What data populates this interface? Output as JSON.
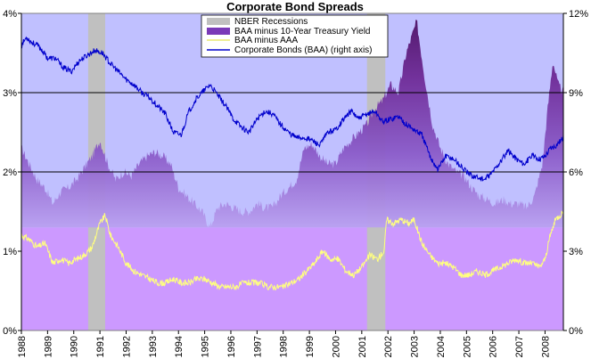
{
  "chart_data": {
    "type": "area",
    "title": "Corporate Bond Spreads",
    "xlabel": "",
    "ylabel": "",
    "x_ticks": [
      "1988",
      "1989",
      "1990",
      "1991",
      "1992",
      "1993",
      "1994",
      "1995",
      "1996",
      "1997",
      "1998",
      "1999",
      "2000",
      "2001",
      "2002",
      "2003",
      "2004",
      "2005",
      "2006",
      "2007",
      "2008"
    ],
    "xlim": [
      1988,
      2008.7
    ],
    "left_axis": {
      "ticks": [
        "0%",
        "1%",
        "2%",
        "3%",
        "4%"
      ],
      "ylim": [
        0,
        4
      ]
    },
    "right_axis": {
      "ticks": [
        "0%",
        "3%",
        "6%",
        "9%",
        "12%"
      ],
      "ylim": [
        0,
        12
      ]
    },
    "grid": "horizontal at 2% and 3%",
    "legend_position": "top-center",
    "colors": {
      "plot_bg": "#c0c0ff",
      "recession": "#c0c0c0",
      "spread_10y": "#8050c0",
      "spread_10y_dark": "#601a80",
      "baa_aaa": "#ffff80",
      "baa": "#0000cc",
      "lower_band": "#cc99ff"
    },
    "series": [
      {
        "name": "NBER Recessions",
        "kind": "band",
        "ranges": [
          [
            1990.55,
            1991.2
          ],
          [
            2001.2,
            2001.9
          ]
        ]
      },
      {
        "name": "BAA minus 10-Year Treasury Yield",
        "axis": "left",
        "x": [
          1988,
          1988.3,
          1988.6,
          1988.9,
          1989.2,
          1989.5,
          1989.8,
          1990.1,
          1990.4,
          1990.7,
          1991.0,
          1991.3,
          1991.6,
          1991.9,
          1992.2,
          1992.5,
          1992.8,
          1993.1,
          1993.4,
          1993.7,
          1994.0,
          1994.3,
          1994.6,
          1994.9,
          1995.2,
          1995.5,
          1995.8,
          1996.1,
          1996.4,
          1996.7,
          1997.0,
          1997.3,
          1997.6,
          1997.9,
          1998.2,
          1998.5,
          1998.8,
          1999.1,
          1999.4,
          1999.7,
          2000.0,
          2000.3,
          2000.6,
          2000.9,
          2001.2,
          2001.5,
          2001.8,
          2002.1,
          2002.4,
          2002.7,
          2002.9,
          2003.1,
          2003.4,
          2003.7,
          2004.0,
          2004.3,
          2004.6,
          2004.9,
          2005.2,
          2005.5,
          2005.8,
          2006.1,
          2006.4,
          2006.7,
          2007.0,
          2007.3,
          2007.6,
          2007.9,
          2008.1,
          2008.3,
          2008.5,
          2008.7
        ],
        "values": [
          2.3,
          2.1,
          1.9,
          1.8,
          1.6,
          1.75,
          1.8,
          1.9,
          2.05,
          2.2,
          2.4,
          2.1,
          1.9,
          2.0,
          1.95,
          2.1,
          2.2,
          2.25,
          2.2,
          2.1,
          1.8,
          1.7,
          1.6,
          1.5,
          1.3,
          1.55,
          1.6,
          1.55,
          1.5,
          1.5,
          1.6,
          1.55,
          1.55,
          1.7,
          1.8,
          1.9,
          2.3,
          2.35,
          2.2,
          2.1,
          2.1,
          2.3,
          2.4,
          2.5,
          2.6,
          2.8,
          2.9,
          3.1,
          3.0,
          3.5,
          3.7,
          3.9,
          3.2,
          2.6,
          2.3,
          2.1,
          2.0,
          1.95,
          1.8,
          1.7,
          1.65,
          1.6,
          1.65,
          1.6,
          1.6,
          1.55,
          1.7,
          2.1,
          2.8,
          3.4,
          3.1,
          3.0
        ]
      },
      {
        "name": "BAA minus AAA",
        "axis": "left",
        "x": [
          1988,
          1988.3,
          1988.6,
          1988.9,
          1989.2,
          1989.5,
          1989.8,
          1990.1,
          1990.4,
          1990.7,
          1991.0,
          1991.2,
          1991.4,
          1991.7,
          1992.0,
          1992.3,
          1992.6,
          1992.9,
          1993.2,
          1993.5,
          1993.8,
          1994.1,
          1994.4,
          1994.7,
          1995.0,
          1995.3,
          1995.6,
          1995.9,
          1996.2,
          1996.5,
          1996.8,
          1997.1,
          1997.4,
          1997.7,
          1998.0,
          1998.3,
          1998.6,
          1998.9,
          1999.2,
          1999.5,
          1999.8,
          2000.1,
          2000.4,
          2000.7,
          2001.0,
          2001.3,
          2001.6,
          2001.85,
          2001.95,
          2002.2,
          2002.5,
          2002.8,
          2003.0,
          2003.3,
          2003.6,
          2003.9,
          2004.2,
          2004.5,
          2004.8,
          2005.1,
          2005.4,
          2005.7,
          2006.0,
          2006.3,
          2006.6,
          2006.9,
          2007.2,
          2007.5,
          2007.8,
          2008.0,
          2008.2,
          2008.4,
          2008.7
        ],
        "values": [
          1.2,
          1.15,
          1.05,
          1.1,
          0.85,
          0.9,
          0.85,
          0.9,
          0.95,
          1.05,
          1.35,
          1.45,
          1.2,
          1.05,
          0.85,
          0.75,
          0.7,
          0.65,
          0.6,
          0.6,
          0.65,
          0.6,
          0.6,
          0.65,
          0.65,
          0.6,
          0.55,
          0.55,
          0.55,
          0.6,
          0.6,
          0.6,
          0.55,
          0.55,
          0.55,
          0.6,
          0.65,
          0.75,
          0.85,
          1.0,
          0.9,
          0.9,
          0.75,
          0.7,
          0.8,
          0.95,
          0.9,
          1.0,
          1.4,
          1.35,
          1.4,
          1.35,
          1.4,
          1.1,
          0.95,
          0.85,
          0.85,
          0.8,
          0.7,
          0.7,
          0.75,
          0.7,
          0.75,
          0.8,
          0.85,
          0.9,
          0.85,
          0.85,
          0.8,
          0.9,
          1.2,
          1.4,
          1.5
        ]
      },
      {
        "name": "Corporate Bonds (BAA) (right axis)",
        "axis": "right",
        "x": [
          1988,
          1988.2,
          1988.4,
          1988.6,
          1988.8,
          1989.0,
          1989.3,
          1989.6,
          1989.9,
          1990.2,
          1990.5,
          1990.8,
          1991.1,
          1991.4,
          1991.7,
          1992.0,
          1992.3,
          1992.6,
          1992.9,
          1993.2,
          1993.5,
          1993.8,
          1994.1,
          1994.4,
          1994.7,
          1995.0,
          1995.2,
          1995.5,
          1995.8,
          1996.1,
          1996.4,
          1996.7,
          1997.0,
          1997.3,
          1997.6,
          1997.9,
          1998.2,
          1998.5,
          1998.8,
          1999.1,
          1999.4,
          1999.7,
          2000.0,
          2000.3,
          2000.6,
          2000.9,
          2001.2,
          2001.5,
          2001.8,
          2002.1,
          2002.4,
          2002.7,
          2003.0,
          2003.3,
          2003.6,
          2003.9,
          2004.2,
          2004.5,
          2004.8,
          2005.1,
          2005.4,
          2005.7,
          2006.0,
          2006.3,
          2006.6,
          2006.9,
          2007.2,
          2007.5,
          2007.8,
          2008.0,
          2008.2,
          2008.4,
          2008.7
        ],
        "values": [
          10.8,
          11.1,
          10.9,
          10.8,
          10.6,
          10.3,
          10.3,
          9.95,
          9.8,
          10.2,
          10.4,
          10.6,
          10.5,
          10.1,
          9.8,
          9.5,
          9.3,
          9.0,
          8.8,
          8.5,
          8.2,
          7.5,
          7.4,
          8.3,
          8.8,
          9.1,
          9.3,
          8.9,
          8.5,
          8.0,
          7.7,
          7.5,
          8.0,
          8.3,
          8.2,
          7.8,
          7.5,
          7.3,
          7.3,
          7.2,
          7.0,
          7.5,
          7.6,
          8.0,
          8.3,
          8.0,
          8.2,
          8.3,
          7.9,
          8.0,
          8.1,
          7.8,
          7.6,
          7.4,
          6.6,
          6.1,
          6.6,
          6.5,
          6.2,
          5.9,
          5.8,
          5.7,
          6.0,
          6.4,
          6.8,
          6.5,
          6.3,
          6.6,
          6.5,
          6.6,
          6.9,
          7.0,
          7.3
        ]
      }
    ]
  }
}
